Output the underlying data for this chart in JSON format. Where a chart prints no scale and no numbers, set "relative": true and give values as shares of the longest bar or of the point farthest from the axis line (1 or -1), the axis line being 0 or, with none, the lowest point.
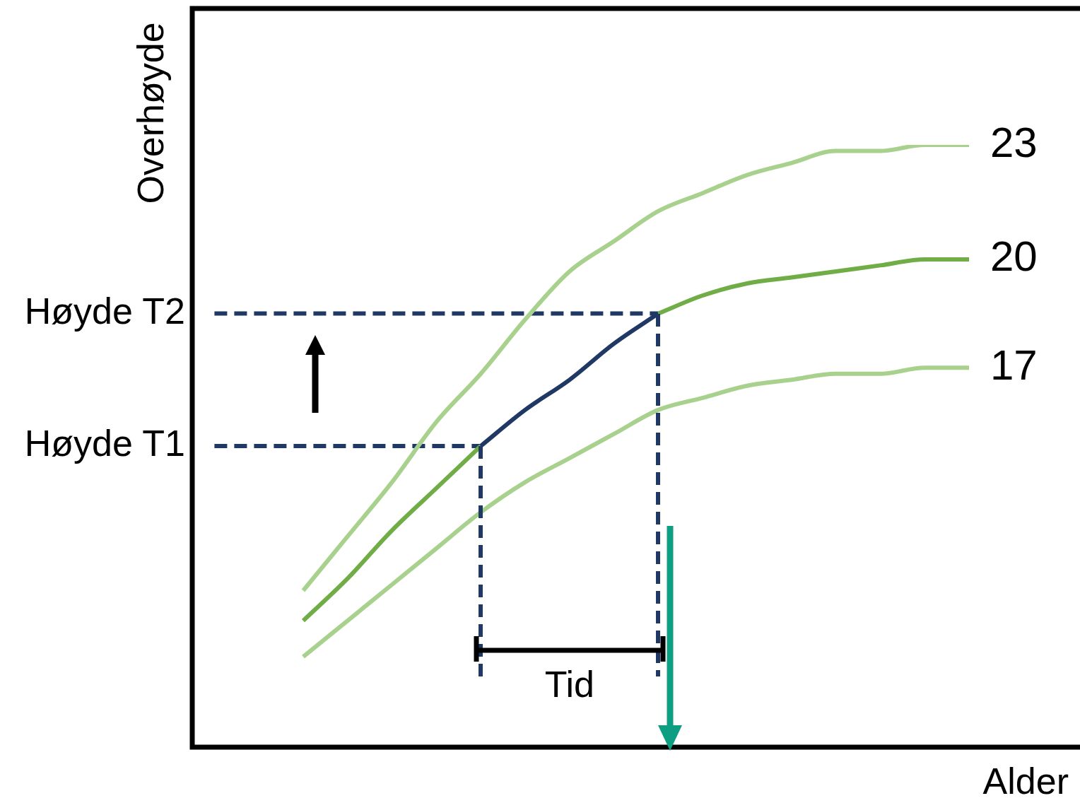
{
  "chart_data": {
    "type": "line",
    "relative": true,
    "xlabel": "Alder",
    "ylabel": "Overhøyde",
    "categories": [
      null,
      null,
      null,
      null,
      null,
      null,
      null,
      null,
      null,
      null,
      null,
      null,
      null,
      null,
      null,
      null,
      null,
      null,
      null,
      null
    ],
    "series": [
      {
        "name": "23",
        "color": "#a9d18e",
        "values": [
          null,
          null,
          0.26,
          0.35,
          0.44,
          0.54,
          0.62,
          0.71,
          0.79,
          0.84,
          0.89,
          0.92,
          0.95,
          0.97,
          0.99,
          0.99,
          1.0,
          1.0,
          null,
          null
        ]
      },
      {
        "name": "20",
        "color": "#70ad47",
        "values": [
          null,
          null,
          0.21,
          0.28,
          0.36,
          0.43,
          0.5,
          null,
          null,
          null,
          0.72,
          0.75,
          0.77,
          0.78,
          0.79,
          0.8,
          0.81,
          0.81,
          null,
          null
        ]
      },
      {
        "color": "#1f3864",
        "values": [
          null,
          null,
          null,
          null,
          null,
          null,
          0.5,
          0.56,
          0.61,
          0.67,
          0.72,
          null,
          null,
          null,
          null,
          null,
          null,
          null,
          null,
          null
        ]
      },
      {
        "name": "17",
        "color": "#a9d18e",
        "values": [
          null,
          null,
          0.15,
          0.21,
          0.27,
          0.33,
          0.39,
          0.44,
          0.48,
          0.52,
          0.56,
          0.58,
          0.6,
          0.61,
          0.62,
          0.62,
          0.63,
          0.63,
          null,
          null
        ]
      },
      {
        "color": "#1f3864",
        "line_style": "dashed",
        "values": [
          0.5,
          0.5,
          0.5,
          0.5,
          0.5,
          0.5,
          0.5,
          null,
          null,
          null,
          null,
          null,
          null,
          null,
          null,
          null,
          null,
          null,
          null,
          null
        ]
      },
      {
        "color": "#1f3864",
        "line_style": "dashed",
        "values": [
          0.72,
          0.72,
          0.72,
          0.72,
          0.72,
          0.72,
          0.72,
          0.72,
          0.72,
          0.72,
          0.72,
          null,
          null,
          null,
          null,
          null,
          null,
          null,
          null,
          null
        ]
      }
    ],
    "annotations": [
      "Høyde T1",
      "Høyde T2",
      "Tid"
    ]
  }
}
